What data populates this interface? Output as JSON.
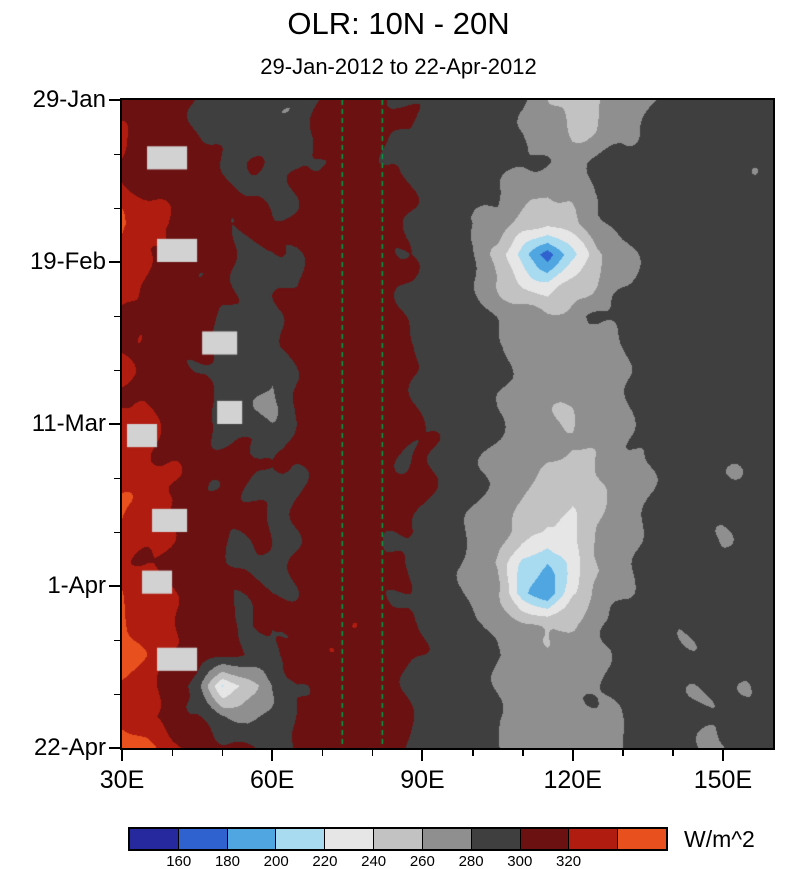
{
  "title": "OLR: 10N - 20N",
  "subtitle": "29-Jan-2012 to 22-Apr-2012",
  "colorbar": {
    "unit_label": "W/m^2",
    "tick_labels": [
      "160",
      "180",
      "200",
      "220",
      "240",
      "260",
      "280",
      "300",
      "320"
    ]
  },
  "axes": {
    "x_ticks": [
      {
        "lon": 30,
        "label": "30E"
      },
      {
        "lon": 60,
        "label": "60E"
      },
      {
        "lon": 90,
        "label": "90E"
      },
      {
        "lon": 120,
        "label": "120E"
      },
      {
        "lon": 150,
        "label": "150E"
      }
    ],
    "x_minor_lons": [
      40,
      50,
      70,
      80,
      100,
      110,
      130,
      140
    ],
    "y_ticks": [
      {
        "day": 0,
        "label": "29-Jan"
      },
      {
        "day": 21,
        "label": "19-Feb"
      },
      {
        "day": 42,
        "label": "11-Mar"
      },
      {
        "day": 63,
        "label": "1-Apr"
      },
      {
        "day": 84,
        "label": "22-Apr"
      }
    ],
    "y_minor_days": [
      7,
      14,
      28,
      35,
      49,
      56,
      70,
      77
    ]
  },
  "chart_data": {
    "type": "heatmap",
    "title": "OLR: 10N - 20N",
    "subtitle": "29-Jan-2012 to 22-Apr-2012",
    "units": "W/m^2",
    "time_start": "29-Jan-2012",
    "time_end": "22-Apr-2012",
    "y_tick_labels": [
      "29-Jan",
      "19-Feb",
      "11-Mar",
      "1-Apr",
      "22-Apr"
    ],
    "x_tick_labels": [
      "30E",
      "60E",
      "90E",
      "120E",
      "150E"
    ],
    "lon_range": [
      30,
      160
    ],
    "lon_step": 5,
    "day_range": [
      0,
      84
    ],
    "levels": [
      160,
      180,
      200,
      220,
      240,
      260,
      280,
      300,
      320,
      340
    ],
    "colors": [
      "#26289e",
      "#2f62cf",
      "#4fa6e0",
      "#a8daf0",
      "#e6e6e6",
      "#c2c2c2",
      "#8f8f8f",
      "#3f3f3f",
      "#6b1111",
      "#b01c10",
      "#e8501e"
    ],
    "missing_color": "#d2d2d2",
    "reference_lines": {
      "lons": [
        74,
        82
      ],
      "color": "#00a046",
      "style": "dashed"
    },
    "missing_blocks": [
      {
        "lon": [
          35,
          43
        ],
        "day": [
          6,
          9
        ]
      },
      {
        "lon": [
          37,
          45
        ],
        "day": [
          18,
          21
        ]
      },
      {
        "lon": [
          46,
          53
        ],
        "day": [
          30,
          33
        ]
      },
      {
        "lon": [
          49,
          54
        ],
        "day": [
          39,
          42
        ]
      },
      {
        "lon": [
          31,
          37
        ],
        "day": [
          42,
          45
        ]
      },
      {
        "lon": [
          36,
          43
        ],
        "day": [
          53,
          56
        ]
      },
      {
        "lon": [
          34,
          40
        ],
        "day": [
          61,
          64
        ]
      },
      {
        "lon": [
          37,
          45
        ],
        "day": [
          71,
          74
        ]
      }
    ],
    "values": [
      [
        312,
        310,
        306,
        300,
        290,
        284,
        282,
        288,
        304,
        308,
        306,
        300,
        292,
        288,
        286,
        282,
        278,
        264,
        252,
        258,
        270,
        282,
        288,
        290,
        288,
        286,
        288
      ],
      [
        314,
        312,
        308,
        302,
        294,
        286,
        284,
        290,
        306,
        310,
        308,
        302,
        294,
        290,
        286,
        284,
        280,
        268,
        256,
        262,
        274,
        284,
        290,
        292,
        290,
        288,
        290
      ],
      [
        318,
        314,
        310,
        305,
        300,
        296,
        294,
        298,
        306,
        310,
        308,
        302,
        296,
        292,
        288,
        284,
        280,
        276,
        272,
        278,
        286,
        290,
        292,
        290,
        288,
        286,
        288
      ],
      [
        326,
        320,
        312,
        306,
        302,
        298,
        296,
        300,
        308,
        312,
        310,
        304,
        298,
        292,
        288,
        280,
        268,
        262,
        270,
        280,
        288,
        292,
        294,
        292,
        288,
        286,
        288
      ],
      [
        344,
        330,
        316,
        308,
        304,
        300,
        298,
        302,
        310,
        312,
        310,
        304,
        298,
        292,
        286,
        274,
        252,
        238,
        256,
        272,
        284,
        290,
        292,
        290,
        288,
        290,
        292
      ],
      [
        336,
        326,
        314,
        306,
        302,
        298,
        296,
        300,
        308,
        310,
        308,
        302,
        296,
        288,
        276,
        256,
        208,
        172,
        215,
        255,
        275,
        286,
        290,
        288,
        286,
        288,
        290
      ],
      [
        328,
        320,
        312,
        305,
        300,
        296,
        294,
        298,
        306,
        308,
        306,
        300,
        294,
        288,
        278,
        264,
        240,
        228,
        246,
        264,
        278,
        286,
        290,
        288,
        286,
        288,
        290
      ],
      [
        324,
        318,
        310,
        304,
        298,
        296,
        298,
        302,
        308,
        310,
        308,
        302,
        296,
        292,
        286,
        278,
        270,
        262,
        270,
        280,
        286,
        290,
        288,
        286,
        284,
        286,
        288
      ],
      [
        322,
        316,
        310,
        305,
        300,
        298,
        300,
        304,
        310,
        312,
        310,
        304,
        298,
        294,
        290,
        284,
        278,
        272,
        266,
        274,
        282,
        288,
        286,
        284,
        282,
        284,
        286
      ],
      [
        320,
        314,
        308,
        303,
        298,
        286,
        282,
        300,
        308,
        310,
        308,
        302,
        296,
        292,
        288,
        282,
        276,
        270,
        264,
        270,
        280,
        286,
        290,
        288,
        286,
        288,
        290
      ],
      [
        324,
        318,
        312,
        306,
        300,
        284,
        280,
        300,
        308,
        312,
        310,
        304,
        298,
        292,
        286,
        278,
        272,
        266,
        260,
        268,
        278,
        286,
        290,
        292,
        290,
        288,
        290
      ],
      [
        328,
        322,
        314,
        307,
        302,
        298,
        294,
        302,
        310,
        314,
        312,
        306,
        300,
        294,
        288,
        280,
        272,
        264,
        258,
        266,
        276,
        284,
        290,
        288,
        286,
        288,
        290
      ],
      [
        332,
        324,
        316,
        308,
        303,
        300,
        296,
        304,
        310,
        314,
        312,
        306,
        300,
        292,
        284,
        274,
        264,
        256,
        250,
        260,
        272,
        282,
        288,
        286,
        284,
        286,
        288
      ],
      [
        338,
        328,
        318,
        310,
        305,
        300,
        298,
        304,
        312,
        314,
        312,
        306,
        300,
        294,
        286,
        274,
        260,
        248,
        242,
        254,
        268,
        280,
        286,
        290,
        288,
        286,
        288
      ],
      [
        334,
        324,
        316,
        308,
        302,
        298,
        296,
        302,
        310,
        312,
        310,
        304,
        298,
        290,
        280,
        266,
        248,
        232,
        240,
        256,
        270,
        282,
        288,
        286,
        284,
        286,
        288
      ],
      [
        330,
        322,
        312,
        306,
        300,
        296,
        294,
        300,
        308,
        312,
        308,
        302,
        294,
        286,
        274,
        258,
        218,
        200,
        234,
        258,
        274,
        284,
        290,
        288,
        286,
        288,
        290
      ],
      [
        336,
        326,
        316,
        308,
        302,
        298,
        296,
        302,
        310,
        312,
        310,
        304,
        298,
        288,
        278,
        262,
        205,
        175,
        240,
        262,
        276,
        286,
        290,
        292,
        290,
        292,
        294
      ],
      [
        345,
        334,
        320,
        310,
        304,
        300,
        298,
        304,
        312,
        314,
        312,
        306,
        300,
        294,
        286,
        276,
        264,
        256,
        262,
        274,
        282,
        288,
        286,
        284,
        282,
        284,
        286
      ],
      [
        348,
        338,
        324,
        312,
        306,
        302,
        298,
        304,
        312,
        314,
        310,
        304,
        298,
        294,
        290,
        284,
        276,
        270,
        274,
        282,
        286,
        290,
        288,
        286,
        284,
        286,
        288
      ],
      [
        342,
        330,
        312,
        286,
        215,
        248,
        278,
        298,
        308,
        312,
        310,
        304,
        298,
        292,
        288,
        282,
        276,
        270,
        274,
        280,
        286,
        290,
        286,
        284,
        282,
        284,
        286
      ],
      [
        334,
        324,
        314,
        304,
        282,
        278,
        286,
        298,
        306,
        310,
        308,
        302,
        296,
        290,
        286,
        280,
        274,
        268,
        272,
        278,
        284,
        288,
        284,
        282,
        280,
        282,
        284
      ],
      [
        350,
        342,
        328,
        314,
        306,
        300,
        296,
        300,
        306,
        308,
        306,
        300,
        294,
        288,
        284,
        278,
        272,
        264,
        268,
        276,
        282,
        286,
        282,
        280,
        278,
        280,
        282
      ]
    ]
  }
}
